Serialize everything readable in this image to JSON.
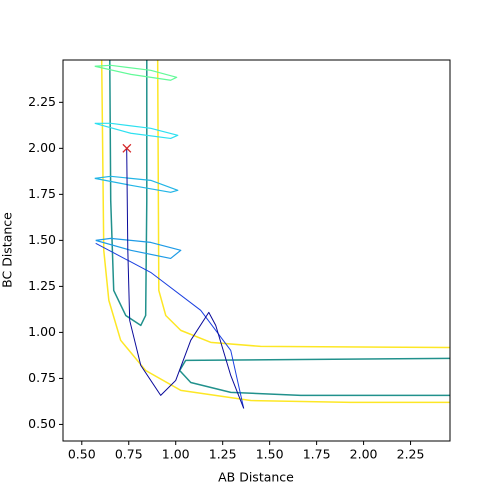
{
  "chart_data": {
    "type": "line",
    "xlabel": "AB Distance",
    "ylabel": "BC Distance",
    "xlim": [
      0.4,
      2.46
    ],
    "ylim": [
      0.41,
      2.48
    ],
    "xticks": [
      {
        "value": 0.5,
        "label": "0.50"
      },
      0.75,
      {
        "value": 1.0,
        "label": "1.00"
      },
      1.25,
      {
        "value": 1.5,
        "label": "1.50"
      },
      1.75,
      {
        "value": 2.0,
        "label": "2.00"
      },
      2.25
    ],
    "yticks": [
      {
        "value": 0.5,
        "label": "0.50"
      },
      0.75,
      {
        "value": 1.0,
        "label": "1.00"
      },
      1.25,
      {
        "value": 1.5,
        "label": "1.50"
      },
      1.75,
      {
        "value": 2.0,
        "label": "2.00"
      },
      2.25
    ],
    "series": [
      {
        "color": "#fde725",
        "width": 1.5,
        "x": [
          0.606,
          0.617,
          0.644,
          0.707,
          0.84,
          1.027,
          1.399,
          1.931,
          2.463,
          null,
          0.904,
          0.91,
          0.947,
          1.027,
          1.186,
          1.452,
          2.463
        ],
        "values": [
          2.478,
          1.446,
          1.174,
          0.957,
          0.793,
          0.685,
          0.63,
          0.62,
          0.62,
          null,
          2.478,
          1.228,
          1.092,
          1.011,
          0.946,
          0.924,
          0.918
        ]
      },
      {
        "color": "#21918c",
        "width": 1.5,
        "x": [
          0.649,
          0.654,
          0.67,
          0.734,
          0.814,
          0.84,
          0.846,
          0.846,
          null,
          2.463,
          1.665,
          1.053,
          1.021,
          1.08,
          1.293,
          1.665,
          2.463
        ],
        "values": [
          2.478,
          1.717,
          1.228,
          1.092,
          1.038,
          1.092,
          1.717,
          2.478,
          null,
          0.859,
          0.853,
          0.848,
          0.793,
          0.728,
          0.674,
          0.658,
          0.658
        ]
      },
      {
        "color": "#1e9be6",
        "width": 1.2,
        "x": [
          0.574,
          0.761,
          0.973,
          1.027,
          0.867,
          0.654,
          0.574
        ],
        "values": [
          1.5,
          1.446,
          1.402,
          1.446,
          1.489,
          1.511,
          1.5
        ]
      },
      {
        "color": "#22b5e6",
        "width": 1.2,
        "x": [
          0.569,
          0.761,
          0.973,
          1.011,
          0.867,
          0.654,
          0.569
        ],
        "values": [
          1.837,
          1.799,
          1.761,
          1.772,
          1.826,
          1.848,
          1.837
        ]
      },
      {
        "color": "#2de0f0",
        "width": 1.2,
        "x": [
          0.569,
          0.761,
          0.973,
          1.011,
          0.867,
          0.654,
          0.569
        ],
        "values": [
          2.136,
          2.082,
          2.054,
          2.071,
          2.109,
          2.136,
          2.136
        ]
      },
      {
        "color": "#62fa98",
        "width": 1.2,
        "x": [
          0.569,
          0.761,
          0.973,
          1.005,
          0.867,
          0.654,
          0.569
        ],
        "values": [
          2.446,
          2.402,
          2.37,
          2.386,
          2.424,
          2.451,
          2.446
        ]
      },
      {
        "color": "#1a3fe0",
        "width": 1.0,
        "x": [
          0.574,
          0.867,
          1.133,
          1.293,
          1.362
        ],
        "values": [
          1.484,
          1.326,
          1.12,
          0.902,
          0.587
        ]
      },
      {
        "color": "#0a0a9a",
        "width": 1.0,
        "x": [
          0.739,
          0.745,
          0.755,
          0.814,
          0.92,
          1.0,
          1.08,
          1.176,
          1.213,
          1.293,
          1.362
        ],
        "values": [
          2.0,
          1.446,
          1.065,
          0.821,
          0.658,
          0.739,
          0.957,
          1.109,
          1.038,
          0.766,
          0.587
        ]
      },
      {
        "color": "#d62728",
        "marker": "x",
        "x": [
          0.74
        ],
        "values": [
          2.0
        ]
      }
    ]
  }
}
